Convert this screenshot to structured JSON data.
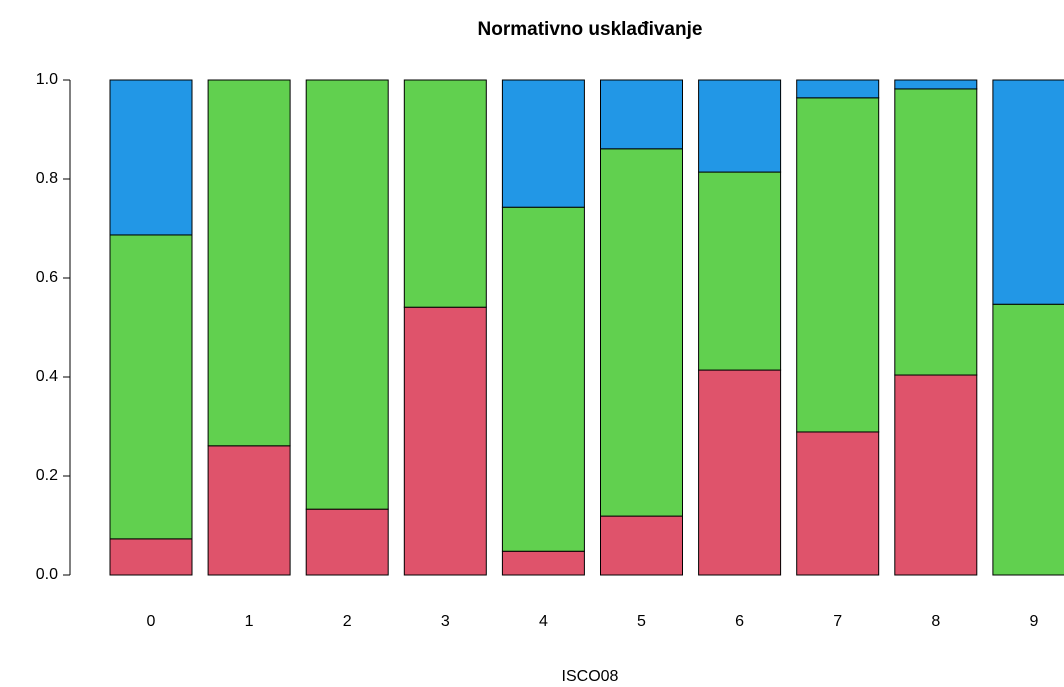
{
  "chart_data": {
    "type": "bar",
    "stacked": true,
    "title": "Normativno usklađivanje",
    "x_label": "ISCO08",
    "categories": [
      "0",
      "1",
      "2",
      "3",
      "4",
      "5",
      "6",
      "7",
      "8",
      "9"
    ],
    "series": [
      {
        "color": "#DF536B",
        "values": [
          0.073,
          0.261,
          0.133,
          0.541,
          0.048,
          0.119,
          0.414,
          0.289,
          0.404,
          0
        ]
      },
      {
        "color": "#61D04F",
        "values": [
          0.614,
          0.739,
          0.867,
          0.459,
          0.695,
          0.742,
          0.4,
          0.675,
          0.578,
          0.547
        ]
      },
      {
        "color": "#2297E6",
        "values": [
          0.313,
          0,
          0,
          0,
          0.257,
          0.139,
          0.186,
          0.036,
          0.018,
          0.453
        ]
      }
    ],
    "ylim": [
      0,
      1
    ],
    "yticks": [
      {
        "value": 0,
        "label": "0.0"
      },
      0.2,
      0.4,
      0.6,
      0.8,
      {
        "value": 1,
        "label": "1.0"
      }
    ],
    "grid": false
  }
}
